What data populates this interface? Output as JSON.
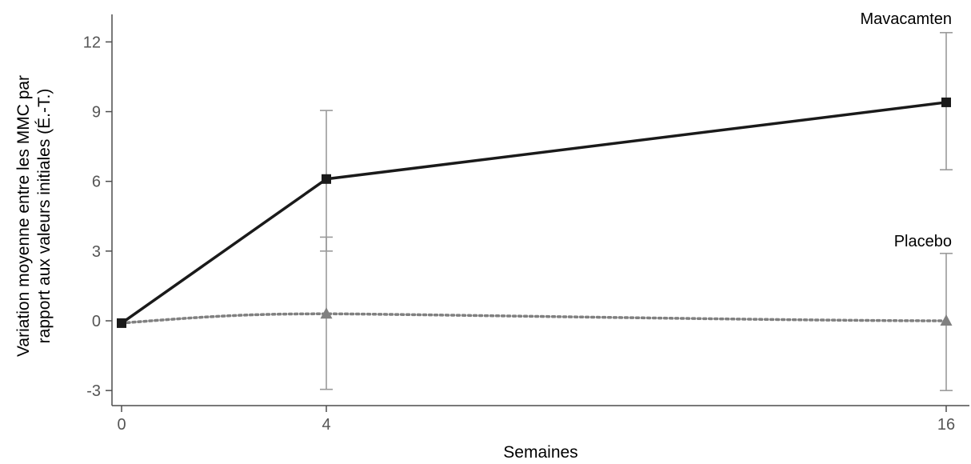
{
  "chart_data": {
    "type": "line",
    "xlabel": "Semaines",
    "ylabel_line1": "Variation moyenne entre les MMC par",
    "ylabel_line2": "rapport aux valeurs initiales (É.-T.)",
    "x": [
      0,
      4,
      16
    ],
    "xticks": [
      "0",
      "4",
      "16"
    ],
    "yticks": [
      "-3",
      "0",
      "3",
      "6",
      "9",
      "12"
    ],
    "ylim": [
      -3.2,
      13.2
    ],
    "grid": false,
    "series": [
      {
        "name": "Mavacamten",
        "values": [
          -0.1,
          6.1,
          9.4
        ],
        "error_low": [
          -0.1,
          3.0,
          6.5
        ],
        "error_high": [
          -0.1,
          9.05,
          12.4
        ],
        "line_style": "solid",
        "marker": "square",
        "color": "#1a1a1a"
      },
      {
        "name": "Placebo",
        "values": [
          -0.1,
          0.3,
          0.0
        ],
        "error_low": [
          -0.1,
          -2.95,
          -3.0
        ],
        "error_high": [
          -0.1,
          3.6,
          2.9
        ],
        "line_style": "dotted",
        "marker": "triangle",
        "color": "#808080"
      }
    ]
  }
}
